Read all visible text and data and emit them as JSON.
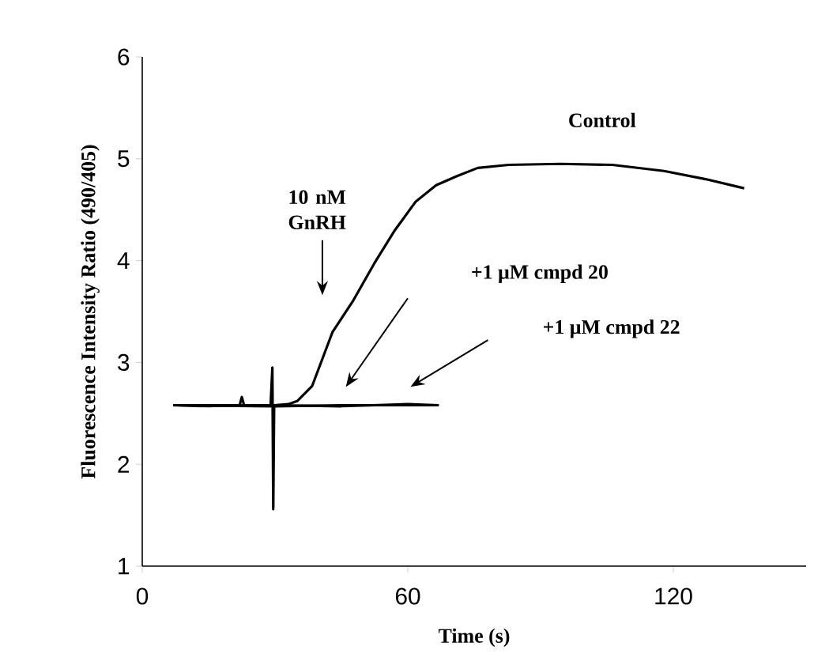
{
  "chart_data": {
    "type": "line",
    "xlabel": "Time (s)",
    "ylabel": "Fluorescence Intensity Ratio (490/405)",
    "xlim": [
      0,
      150
    ],
    "xticks": [
      0,
      60,
      120
    ],
    "ylim": [
      1,
      6
    ],
    "yticks": [
      1,
      2,
      3,
      4,
      5,
      6
    ],
    "grid": false,
    "legend": false,
    "marker": "none",
    "line_style": "solid",
    "series": [
      {
        "name": "Control",
        "color": "#000000",
        "x": [
          7,
          15,
          22,
          22.5,
          23,
          29,
          29.4,
          29.6,
          29.8,
          33,
          35,
          38.4,
          43,
          47.7,
          52.4,
          57.1,
          61.8,
          66.4,
          71.1,
          75.8,
          82.8,
          94.5,
          106.2,
          117.9,
          127.3,
          136
        ],
        "values": [
          2.58,
          2.57,
          2.58,
          2.66,
          2.58,
          2.58,
          2.95,
          1.56,
          2.58,
          2.59,
          2.62,
          2.77,
          3.3,
          3.61,
          3.97,
          4.3,
          4.58,
          4.74,
          4.83,
          4.91,
          4.94,
          4.95,
          4.94,
          4.88,
          4.8,
          4.71
        ]
      },
      {
        "color": "#000000",
        "x": [
          7,
          30,
          45,
          60,
          67
        ],
        "values": [
          2.58,
          2.58,
          2.57,
          2.59,
          2.58
        ]
      },
      {
        "color": "#000000",
        "x": [
          7,
          30,
          45,
          60,
          67
        ],
        "values": [
          2.58,
          2.57,
          2.58,
          2.58,
          2.58
        ]
      }
    ],
    "annotations": [
      "10 nM GnRH",
      "+1 μM cmpd 20",
      "+1 μM cmpd 22"
    ]
  }
}
